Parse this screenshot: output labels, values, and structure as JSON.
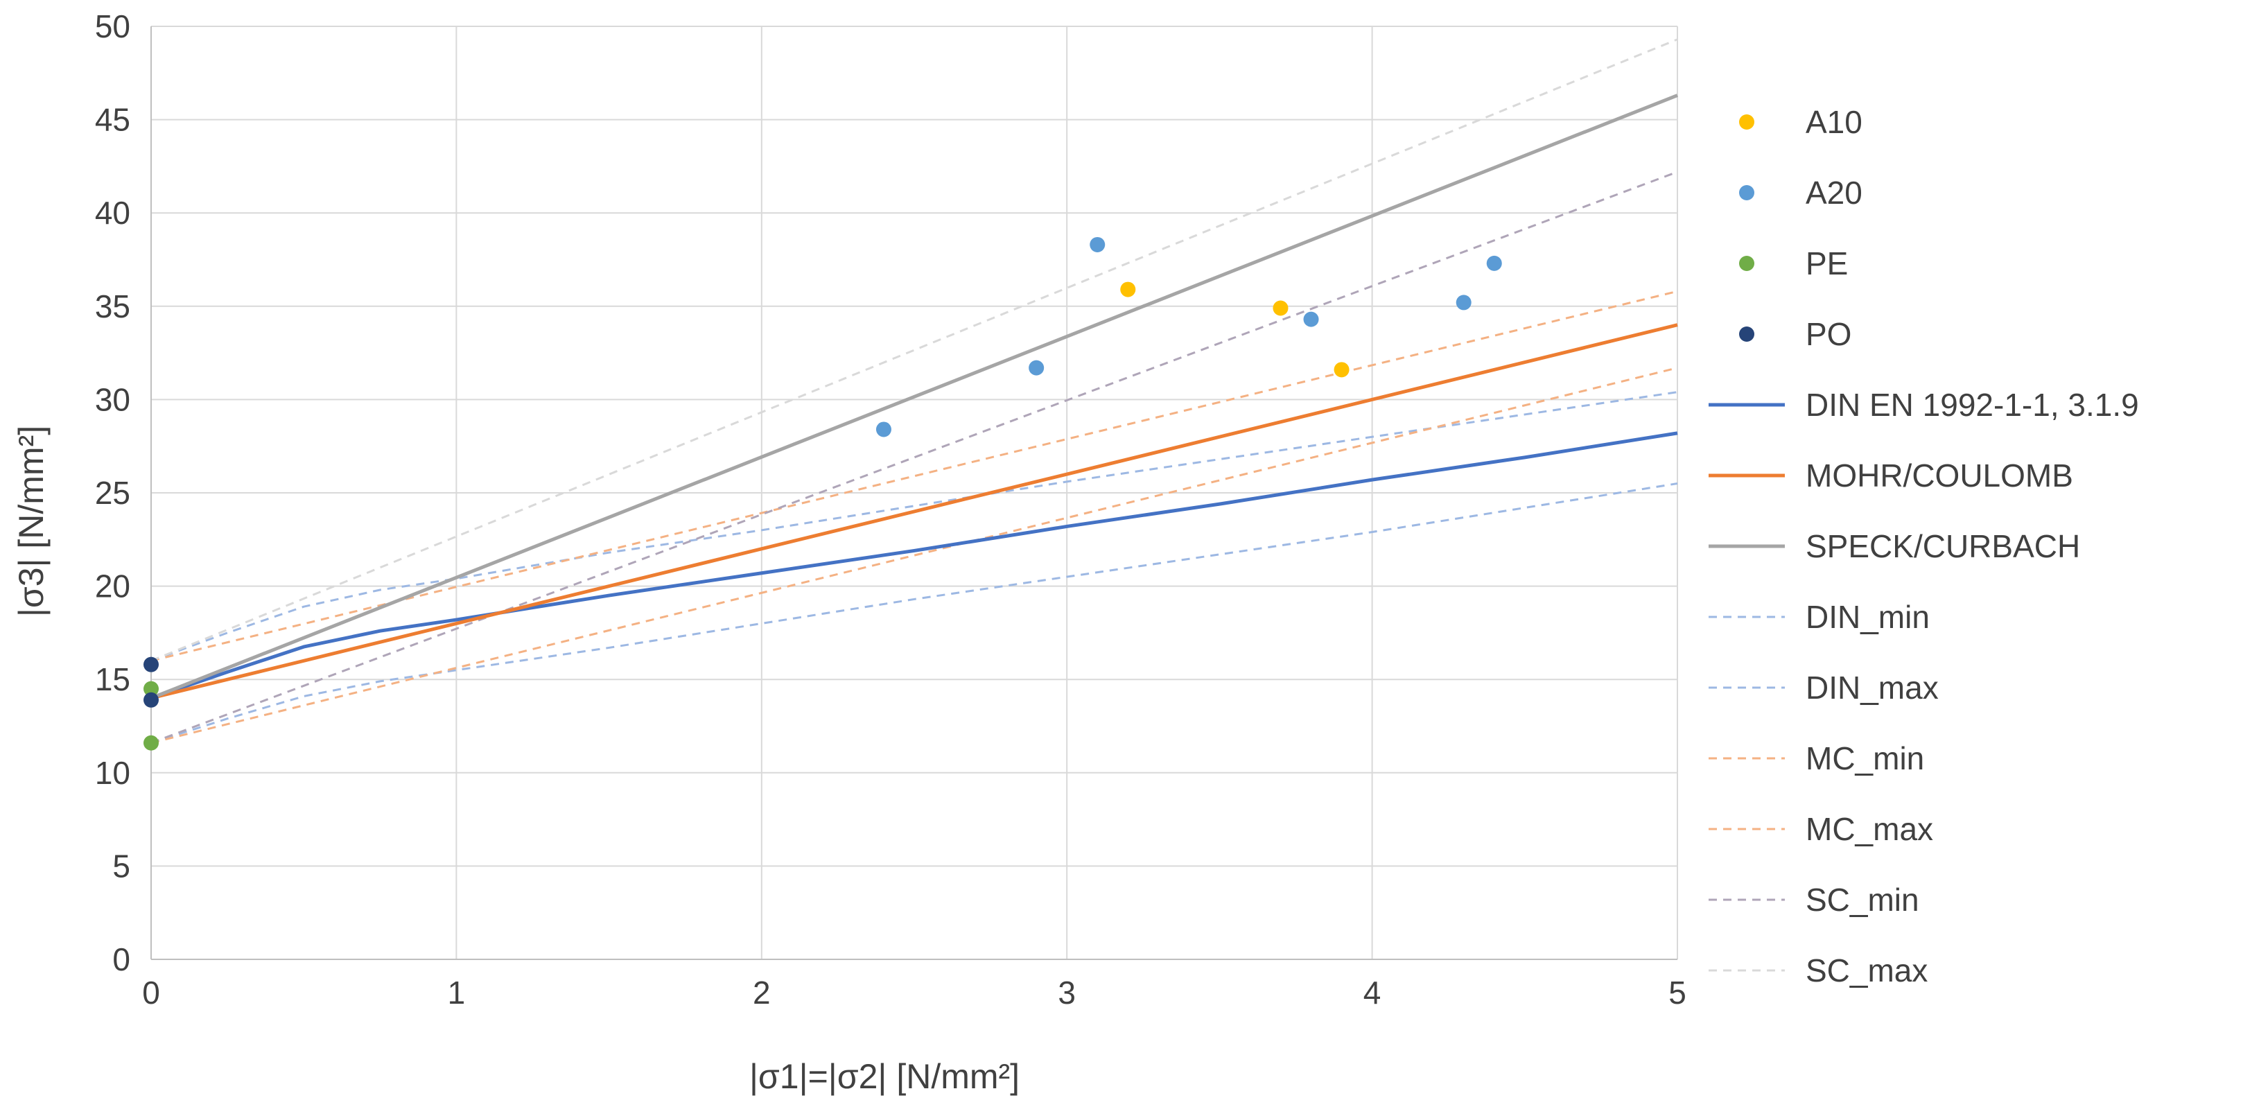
{
  "chart_data": {
    "type": "line",
    "title": "",
    "xlabel": "|σ1|=|σ2| [N/mm²]",
    "ylabel": "|σ3| [N/mm²]",
    "xlim": [
      0,
      5
    ],
    "ylim": [
      0,
      50
    ],
    "x_ticks": [
      0,
      1,
      2,
      3,
      4,
      5
    ],
    "y_ticks": [
      0,
      5,
      10,
      15,
      20,
      25,
      30,
      35,
      40,
      45,
      50
    ],
    "grid": true,
    "legend_position": "right",
    "series": [
      {
        "name": "A10",
        "kind": "scatter",
        "color": "#FFC000",
        "points": [
          [
            3.2,
            35.9
          ],
          [
            3.7,
            34.9
          ],
          [
            3.9,
            31.6
          ]
        ]
      },
      {
        "name": "A20",
        "kind": "scatter",
        "color": "#5B9BD5",
        "points": [
          [
            2.4,
            28.4
          ],
          [
            2.9,
            31.7
          ],
          [
            3.1,
            38.3
          ],
          [
            3.8,
            34.3
          ],
          [
            4.3,
            35.2
          ],
          [
            4.4,
            37.3
          ]
        ]
      },
      {
        "name": "PE",
        "kind": "scatter",
        "color": "#70AD47",
        "points": [
          [
            0,
            14.5
          ],
          [
            0,
            11.6
          ]
        ]
      },
      {
        "name": "PO",
        "kind": "scatter",
        "color": "#264478",
        "points": [
          [
            0,
            15.8
          ],
          [
            0,
            13.9
          ]
        ]
      },
      {
        "name": "DIN EN 1992-1-1, 3.1.9",
        "kind": "line",
        "style": "solid",
        "color": "#4472C4",
        "x": [
          0,
          0.25,
          0.5,
          0.75,
          1,
          1.5,
          2,
          2.5,
          3,
          3.5,
          4,
          4.5,
          5
        ],
        "y": [
          14.0,
          15.4,
          16.75,
          17.6,
          18.2,
          19.5,
          20.7,
          21.9,
          23.2,
          24.4,
          25.7,
          26.9,
          28.2
        ]
      },
      {
        "name": "MOHR/COULOMB",
        "kind": "line",
        "style": "solid",
        "color": "#ED7D31",
        "x": [
          0,
          5
        ],
        "y": [
          14.0,
          34.0
        ]
      },
      {
        "name": "SPECK/CURBACH",
        "kind": "line",
        "style": "solid",
        "color": "#A5A5A5",
        "x": [
          0,
          5
        ],
        "y": [
          14.0,
          46.3
        ]
      },
      {
        "name": "DIN_min",
        "kind": "line",
        "style": "dashed",
        "color": "#9DB8E3",
        "x": [
          0,
          0.25,
          0.5,
          0.75,
          1,
          1.5,
          2,
          2.5,
          3,
          3.5,
          4,
          4.5,
          5
        ],
        "y": [
          11.6,
          12.9,
          14.1,
          14.9,
          15.5,
          16.7,
          18.0,
          19.3,
          20.5,
          21.7,
          22.9,
          24.2,
          25.5
        ]
      },
      {
        "name": "DIN_max",
        "kind": "line",
        "style": "dashed",
        "color": "#9DB8E3",
        "x": [
          0,
          0.25,
          0.5,
          0.75,
          1,
          1.5,
          2,
          2.5,
          3,
          3.5,
          4,
          4.5,
          5
        ],
        "y": [
          16.0,
          17.5,
          18.9,
          19.8,
          20.4,
          21.8,
          23.0,
          24.3,
          25.6,
          26.8,
          28.0,
          29.2,
          30.4
        ]
      },
      {
        "name": "MC_min",
        "kind": "line",
        "style": "dashed",
        "color": "#F4B183",
        "x": [
          0,
          5
        ],
        "y": [
          11.6,
          31.7
        ]
      },
      {
        "name": "MC_max",
        "kind": "line",
        "style": "dashed",
        "color": "#F4B183",
        "x": [
          0,
          5
        ],
        "y": [
          16.0,
          35.8
        ]
      },
      {
        "name": "SC_min",
        "kind": "line",
        "style": "dashed",
        "color": "#AFA5B8",
        "x": [
          0,
          5
        ],
        "y": [
          11.6,
          42.2
        ]
      },
      {
        "name": "SC_max",
        "kind": "line",
        "style": "dashed",
        "color": "#D9D9D9",
        "x": [
          0,
          5
        ],
        "y": [
          16.0,
          49.3
        ]
      }
    ]
  }
}
